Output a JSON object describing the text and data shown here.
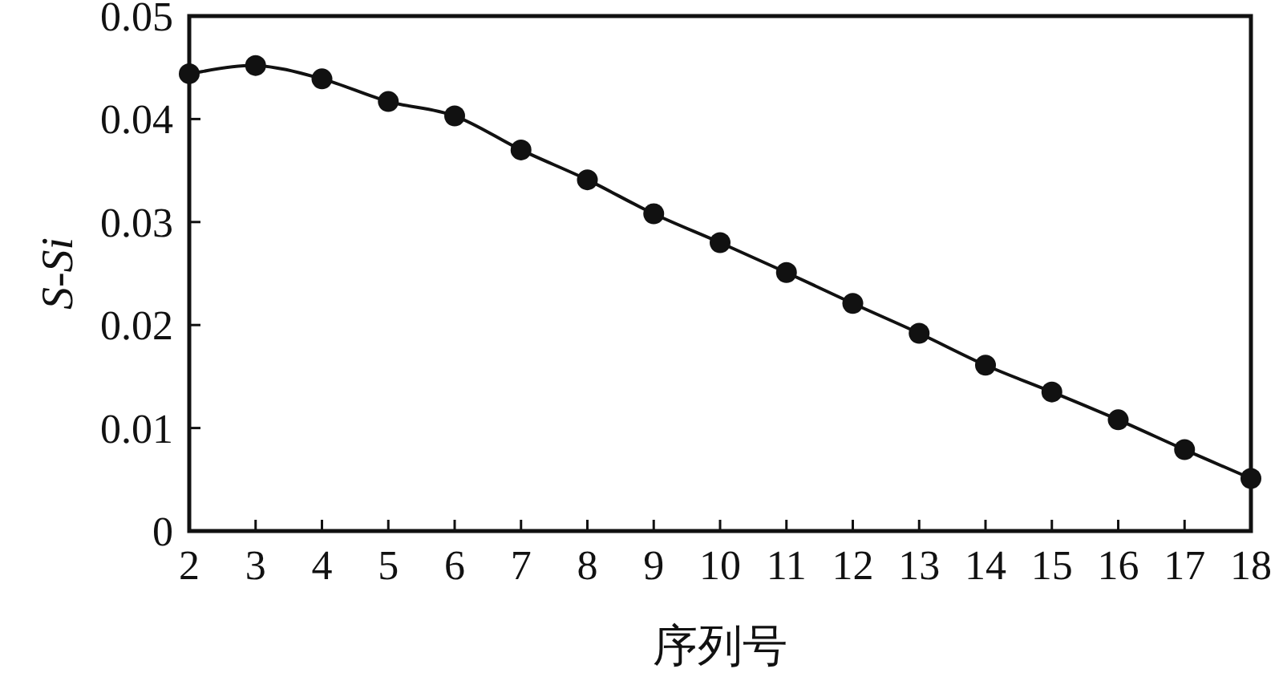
{
  "chart_data": {
    "type": "line",
    "xlabel": "序列号",
    "ylabel": "S-Si",
    "x": [
      2,
      3,
      4,
      5,
      6,
      7,
      8,
      9,
      10,
      11,
      12,
      13,
      14,
      15,
      16,
      17,
      18
    ],
    "series": [
      {
        "color": "#111111",
        "values": [
          0.0444,
          0.0452,
          0.0439,
          0.0417,
          0.0403,
          0.037,
          0.0341,
          0.0308,
          0.028,
          0.0251,
          0.0221,
          0.0192,
          0.0161,
          0.0135,
          0.0108,
          0.0079,
          0.0051
        ]
      }
    ],
    "xlim": [
      2,
      18
    ],
    "xticks": [
      2,
      3,
      4,
      5,
      6,
      7,
      8,
      9,
      10,
      11,
      12,
      13,
      14,
      15,
      16,
      17,
      18
    ],
    "ylim": [
      0,
      0.05
    ],
    "yticks": [
      0,
      0.01,
      0.02,
      0.03,
      0.04,
      0.05
    ],
    "marker": "circle",
    "line_style": "solid"
  }
}
